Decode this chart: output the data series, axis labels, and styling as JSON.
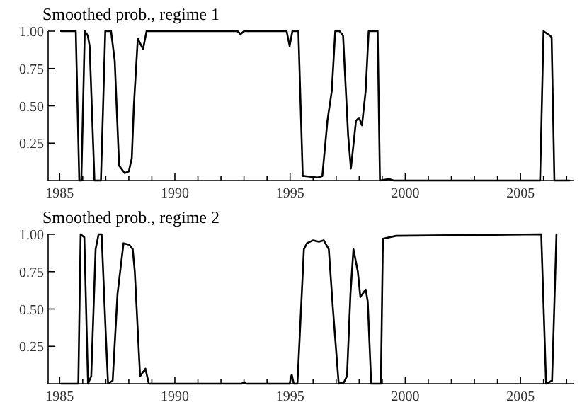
{
  "chart_data": [
    {
      "type": "line",
      "title": "Smoothed prob., regime 1",
      "xlim": [
        1984.5,
        2007.3
      ],
      "ylim": [
        0,
        1
      ],
      "xticks": [
        1985,
        {
          "value": 1986,
          "label": null
        },
        {
          "value": 1987,
          "label": null
        },
        {
          "value": 1988,
          "label": null
        },
        {
          "value": 1989,
          "label": null
        },
        1990,
        {
          "value": 1991,
          "label": null
        },
        {
          "value": 1992,
          "label": null
        },
        {
          "value": 1993,
          "label": null
        },
        {
          "value": 1994,
          "label": null
        },
        1995,
        {
          "value": 1996,
          "label": null
        },
        {
          "value": 1997,
          "label": null
        },
        {
          "value": 1998,
          "label": null
        },
        {
          "value": 1999,
          "label": null
        },
        2000,
        {
          "value": 2001,
          "label": null
        },
        {
          "value": 2002,
          "label": null
        },
        {
          "value": 2003,
          "label": null
        },
        {
          "value": 2004,
          "label": null
        },
        2005,
        {
          "value": 2006,
          "label": null
        },
        {
          "value": 2007,
          "label": null
        }
      ],
      "yticks": [
        {
          "value": 0.25,
          "label": "0.25"
        },
        {
          "value": 0.5,
          "label": "0.50"
        },
        {
          "value": 0.75,
          "label": "0.75"
        },
        {
          "value": 1,
          "label": "1.00"
        }
      ],
      "grid": false,
      "line_style": "solid",
      "marker": "none",
      "series": [
        {
          "color": "#000000",
          "x": [
            1985.06,
            1985.7,
            1985.85,
            1985.94,
            1986.09,
            1986.22,
            1986.3,
            1986.51,
            1986.79,
            1986.98,
            1987.23,
            1987.39,
            1987.58,
            1987.82,
            1988.0,
            1988.13,
            1988.22,
            1988.39,
            1988.62,
            1988.77,
            1992.72,
            1992.85,
            1993.0,
            1994.85,
            1994.98,
            1995.1,
            1995.36,
            1995.55,
            1995.64,
            1996.2,
            1996.4,
            1996.62,
            1996.81,
            1996.96,
            1997.15,
            1997.3,
            1997.52,
            1997.64,
            1997.86,
            1997.99,
            1998.12,
            1998.28,
            1998.41,
            1998.8,
            1998.9,
            1999.3,
            1999.5,
            2005.85,
            2006.0,
            2006.28,
            2006.35,
            2006.47,
            2007.13
          ],
          "values": [
            1,
            1,
            0,
            0,
            1,
            0.97,
            0.9,
            0,
            0,
            1,
            1,
            0.8,
            0.1,
            0.05,
            0.06,
            0.15,
            0.5,
            0.95,
            0.88,
            1,
            1,
            0.98,
            1,
            1,
            0.9,
            1,
            1,
            0.03,
            0.03,
            0.02,
            0.03,
            0.4,
            0.6,
            1,
            1,
            0.97,
            0.3,
            0.08,
            0.4,
            0.42,
            0.37,
            0.6,
            1,
            1,
            0,
            0.01,
            0,
            0,
            1,
            0.97,
            0.96,
            0,
            0
          ]
        }
      ]
    },
    {
      "type": "line",
      "title": "Smoothed prob., regime 2",
      "xlim": [
        1984.5,
        2007.3
      ],
      "ylim": [
        0,
        1
      ],
      "xticks": [
        1985,
        {
          "value": 1986,
          "label": null
        },
        {
          "value": 1987,
          "label": null
        },
        {
          "value": 1988,
          "label": null
        },
        {
          "value": 1989,
          "label": null
        },
        1990,
        {
          "value": 1991,
          "label": null
        },
        {
          "value": 1992,
          "label": null
        },
        {
          "value": 1993,
          "label": null
        },
        {
          "value": 1994,
          "label": null
        },
        1995,
        {
          "value": 1996,
          "label": null
        },
        {
          "value": 1997,
          "label": null
        },
        {
          "value": 1998,
          "label": null
        },
        {
          "value": 1999,
          "label": null
        },
        2000,
        {
          "value": 2001,
          "label": null
        },
        {
          "value": 2002,
          "label": null
        },
        {
          "value": 2003,
          "label": null
        },
        {
          "value": 2004,
          "label": null
        },
        2005,
        {
          "value": 2006,
          "label": null
        },
        {
          "value": 2007,
          "label": null
        }
      ],
      "yticks": [
        {
          "value": 0.25,
          "label": "0.25"
        },
        {
          "value": 0.5,
          "label": "0.50"
        },
        {
          "value": 0.75,
          "label": "0.75"
        },
        {
          "value": 1,
          "label": "1.00"
        }
      ],
      "grid": false,
      "line_style": "solid",
      "marker": "none",
      "series": [
        {
          "color": "#000000",
          "x": [
            1985.06,
            1985.81,
            1985.91,
            1986.07,
            1986.23,
            1986.37,
            1986.56,
            1986.69,
            1986.82,
            1987.01,
            1987.1,
            1987.3,
            1987.51,
            1987.77,
            1988.02,
            1988.17,
            1988.26,
            1988.49,
            1988.72,
            1988.87,
            1992.9,
            1993.0,
            1993.1,
            1994.98,
            1995.07,
            1995.16,
            1995.32,
            1995.6,
            1995.73,
            1996.0,
            1996.25,
            1996.46,
            1996.68,
            1996.86,
            1996.96,
            1997.11,
            1997.34,
            1997.47,
            1997.62,
            1997.75,
            1997.94,
            1998.05,
            1998.28,
            1998.37,
            1998.52,
            1998.94,
            1999.03,
            1999.6,
            2005.9,
            2006.11,
            2006.37,
            2006.56
          ],
          "values": [
            0,
            0,
            1,
            0.98,
            0,
            0.05,
            0.9,
            1,
            1,
            0.3,
            0,
            0.02,
            0.6,
            0.94,
            0.93,
            0.9,
            0.75,
            0.05,
            0.1,
            0,
            0,
            0.01,
            0,
            0,
            0.06,
            0,
            0,
            0.9,
            0.94,
            0.96,
            0.95,
            0.96,
            0.9,
            0.5,
            0.3,
            0,
            0.01,
            0.05,
            0.6,
            0.9,
            0.75,
            0.58,
            0.63,
            0.55,
            0,
            0,
            0.97,
            0.99,
            1,
            0,
            0.02,
            1
          ]
        }
      ]
    }
  ]
}
